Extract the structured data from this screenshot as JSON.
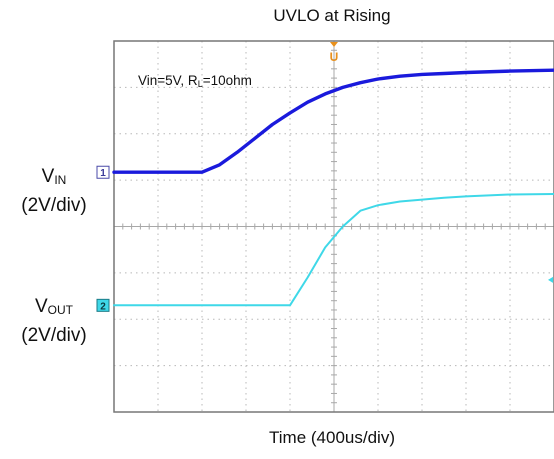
{
  "chart_data": {
    "type": "line",
    "title": "UVLO at Rising",
    "xlabel": "Time (400us/div)",
    "condition": {
      "prefix": "Vin=5V, R",
      "sub": "L",
      "suffix": "=10ohm"
    },
    "channels": [
      {
        "name": "V",
        "sub": "IN",
        "scale": "(2V/div)",
        "marker": "1",
        "color": "#1a1adc"
      },
      {
        "name": "V",
        "sub": "OUT",
        "scale": "(2V/div)",
        "marker": "2",
        "color": "#3fd8e8"
      }
    ],
    "trigger_marker": {
      "label": "U",
      "color": "#e8901c"
    },
    "grid": {
      "x_divisions": 10,
      "y_divisions": 8,
      "visible": true
    },
    "xlim": [
      0,
      10
    ],
    "ylim": [
      -4,
      4
    ],
    "series": [
      {
        "name": "V_IN",
        "color": "#1a1adc",
        "x": [
          0,
          1,
          2,
          2.4,
          2.8,
          3.2,
          3.6,
          4,
          4.4,
          4.8,
          5.2,
          5.6,
          6,
          6.5,
          7,
          7.5,
          8,
          9,
          10
        ],
        "y": [
          1.17,
          1.17,
          1.17,
          1.33,
          1.6,
          1.9,
          2.2,
          2.45,
          2.68,
          2.86,
          3.0,
          3.1,
          3.18,
          3.24,
          3.28,
          3.3,
          3.32,
          3.35,
          3.37
        ]
      },
      {
        "name": "V_OUT",
        "color": "#3fd8e8",
        "x": [
          0,
          2,
          4,
          4.4,
          4.8,
          5.2,
          5.6,
          6,
          6.5,
          7,
          7.5,
          8,
          9,
          10
        ],
        "y": [
          -1.7,
          -1.7,
          -1.7,
          -1.1,
          -0.45,
          0.0,
          0.34,
          0.46,
          0.54,
          0.58,
          0.62,
          0.65,
          0.69,
          0.7
        ]
      }
    ]
  }
}
